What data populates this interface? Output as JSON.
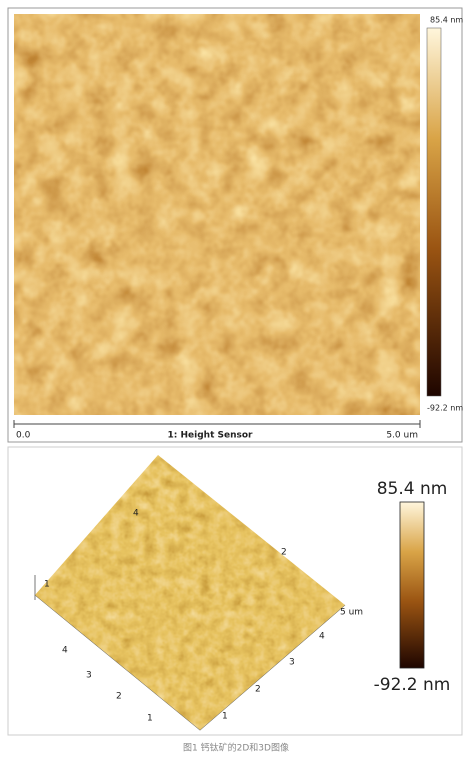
{
  "top_panel": {
    "colorbar_max": "85.4 nm",
    "colorbar_min": "-92.2 nm",
    "x_start": "0.0",
    "title": "1: Height Sensor",
    "x_end": "5.0 um"
  },
  "bottom_panel": {
    "colorbar_max": "85.4 nm",
    "colorbar_min": "-92.2 nm",
    "left_axis_labels": [
      "4",
      "3",
      "2",
      "1"
    ],
    "right_axis_labels": [
      "1",
      "2",
      "3",
      "4",
      "5 um"
    ],
    "z_axis_label": "1",
    "surface_labels": [
      "4",
      "2"
    ]
  },
  "caption": "图1 钙钛矿的2D和3D图像"
}
